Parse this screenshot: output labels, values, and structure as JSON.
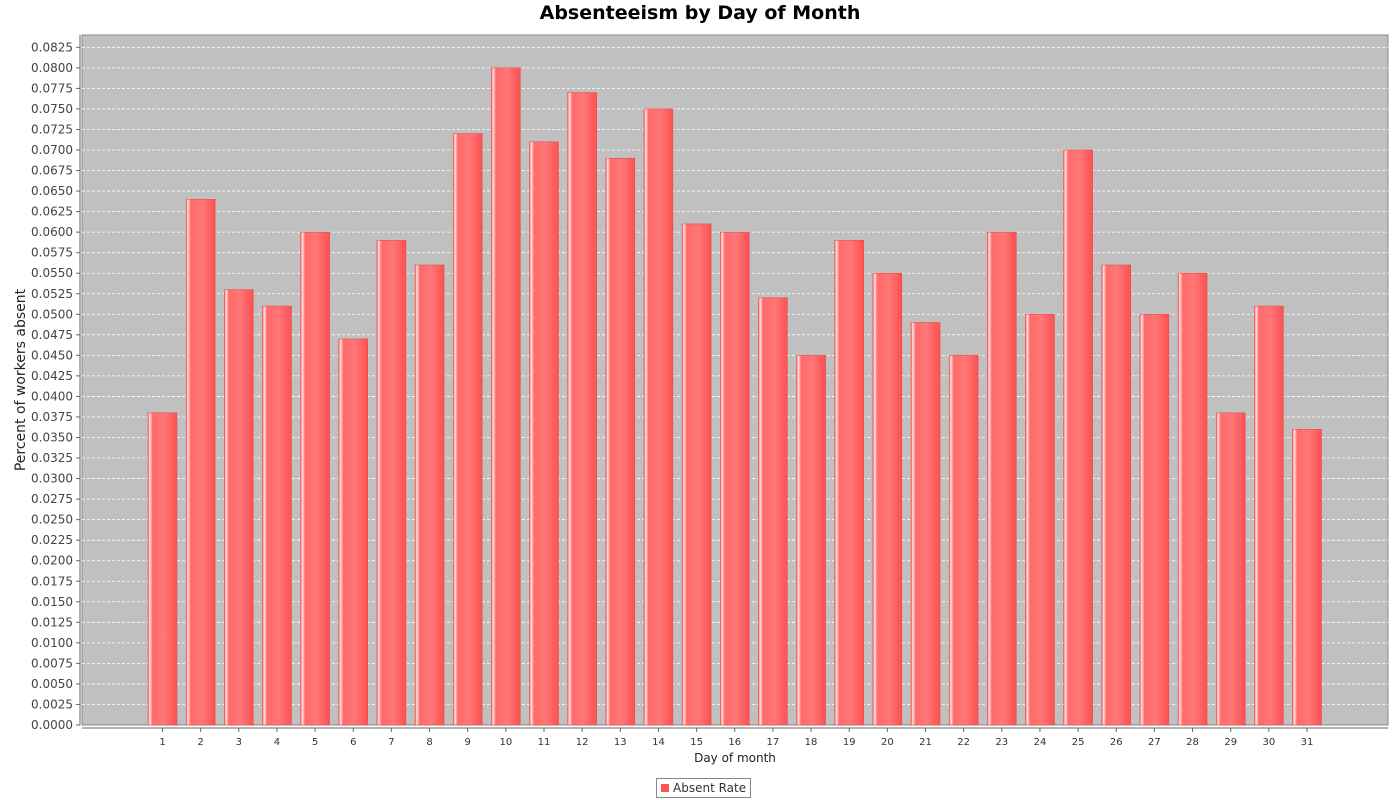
{
  "chart_data": {
    "type": "bar",
    "title": "Absenteeism by Day of Month",
    "xlabel": "Day of month",
    "ylabel": "Percent of workers absent",
    "categories": [
      "1",
      "2",
      "3",
      "4",
      "5",
      "6",
      "7",
      "8",
      "9",
      "10",
      "11",
      "12",
      "13",
      "14",
      "15",
      "16",
      "17",
      "18",
      "19",
      "20",
      "21",
      "22",
      "23",
      "24",
      "25",
      "26",
      "27",
      "28",
      "29",
      "30",
      "31"
    ],
    "series": [
      {
        "name": "Absent Rate",
        "values": [
          0.038,
          0.064,
          0.053,
          0.051,
          0.06,
          0.047,
          0.059,
          0.056,
          0.072,
          0.08,
          0.071,
          0.077,
          0.069,
          0.075,
          0.061,
          0.06,
          0.052,
          0.045,
          0.059,
          0.055,
          0.049,
          0.045,
          0.06,
          0.05,
          0.07,
          0.056,
          0.05,
          0.055,
          0.038,
          0.051,
          0.036
        ]
      }
    ],
    "ylim": [
      0,
      0.084
    ],
    "yticks": [
      "0.0000",
      "0.0025",
      "0.0050",
      "0.0075",
      "0.0100",
      "0.0125",
      "0.0150",
      "0.0175",
      "0.0200",
      "0.0225",
      "0.0250",
      "0.0275",
      "0.0300",
      "0.0325",
      "0.0350",
      "0.0375",
      "0.0400",
      "0.0425",
      "0.0450",
      "0.0475",
      "0.0500",
      "0.0525",
      "0.0550",
      "0.0575",
      "0.0600",
      "0.0625",
      "0.0650",
      "0.0675",
      "0.0700",
      "0.0725",
      "0.0750",
      "0.0775",
      "0.0800",
      "0.0825"
    ],
    "grid": true,
    "legend_position": "bottom-center",
    "colors": {
      "bar": "#ff5555",
      "bar_highlight": "#ffd0d0",
      "plot_background": "#c0c0c0",
      "gridline": "#ffffff"
    }
  }
}
